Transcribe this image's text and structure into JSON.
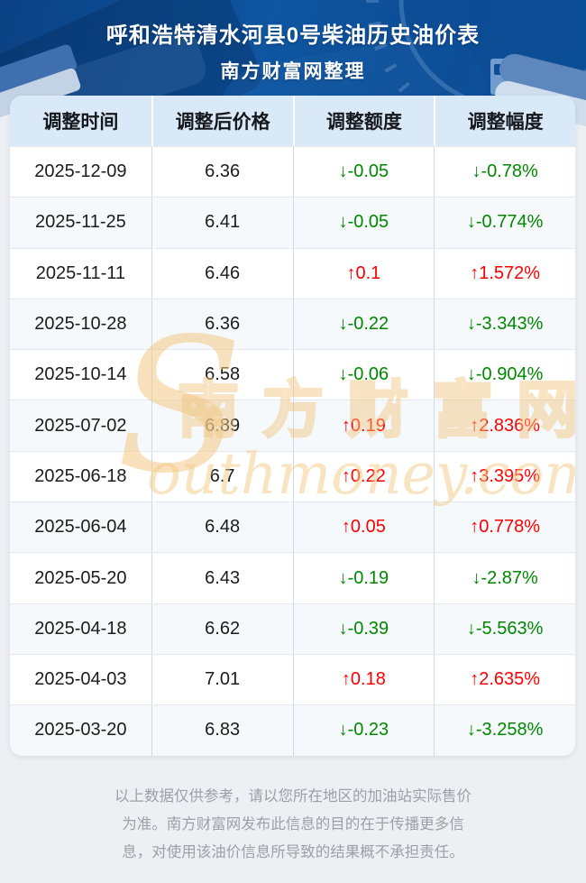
{
  "header": {
    "title": "呼和浩特清水河县0号柴油历史油价表",
    "subtitle": "南方财富网整理"
  },
  "table": {
    "columns": [
      "调整时间",
      "调整后价格",
      "调整额度",
      "调整幅度"
    ],
    "arrows": {
      "up": "↑",
      "down": "↓"
    },
    "rows": [
      {
        "date": "2025-12-09",
        "price": "6.36",
        "change": "-0.05",
        "pct": "-0.78%",
        "direction": "down"
      },
      {
        "date": "2025-11-25",
        "price": "6.41",
        "change": "-0.05",
        "pct": "-0.774%",
        "direction": "down"
      },
      {
        "date": "2025-11-11",
        "price": "6.46",
        "change": "0.1",
        "pct": "1.572%",
        "direction": "up"
      },
      {
        "date": "2025-10-28",
        "price": "6.36",
        "change": "-0.22",
        "pct": "-3.343%",
        "direction": "down"
      },
      {
        "date": "2025-10-14",
        "price": "6.58",
        "change": "-0.06",
        "pct": "-0.904%",
        "direction": "down"
      },
      {
        "date": "2025-07-02",
        "price": "6.89",
        "change": "0.19",
        "pct": "2.836%",
        "direction": "up"
      },
      {
        "date": "2025-06-18",
        "price": "6.7",
        "change": "0.22",
        "pct": "3.395%",
        "direction": "up"
      },
      {
        "date": "2025-06-04",
        "price": "6.48",
        "change": "0.05",
        "pct": "0.778%",
        "direction": "up"
      },
      {
        "date": "2025-05-20",
        "price": "6.43",
        "change": "-0.19",
        "pct": "-2.87%",
        "direction": "down"
      },
      {
        "date": "2025-04-18",
        "price": "6.62",
        "change": "-0.39",
        "pct": "-5.563%",
        "direction": "down"
      },
      {
        "date": "2025-04-03",
        "price": "7.01",
        "change": "0.18",
        "pct": "2.635%",
        "direction": "up"
      },
      {
        "date": "2025-03-20",
        "price": "6.83",
        "change": "-0.23",
        "pct": "-3.258%",
        "direction": "down"
      }
    ]
  },
  "chart_data": {
    "type": "table",
    "title": "呼和浩特清水河县0号柴油历史油价表",
    "columns": [
      "调整时间",
      "调整后价格",
      "调整额度",
      "调整幅度"
    ],
    "rows": [
      [
        "2025-12-09",
        "6.36",
        "↓-0.05",
        "↓-0.78%"
      ],
      [
        "2025-11-25",
        "6.41",
        "↓-0.05",
        "↓-0.774%"
      ],
      [
        "2025-11-11",
        "6.46",
        "↑0.1",
        "↑1.572%"
      ],
      [
        "2025-10-28",
        "6.36",
        "↓-0.22",
        "↓-3.343%"
      ],
      [
        "2025-10-14",
        "6.58",
        "↓-0.06",
        "↓-0.904%"
      ],
      [
        "2025-07-02",
        "6.89",
        "↑0.19",
        "↑2.836%"
      ],
      [
        "2025-06-18",
        "6.7",
        "↑0.22",
        "↑3.395%"
      ],
      [
        "2025-06-04",
        "6.48",
        "↑0.05",
        "↑0.778%"
      ],
      [
        "2025-05-20",
        "6.43",
        "↓-0.19",
        "↓-2.87%"
      ],
      [
        "2025-04-18",
        "6.62",
        "↓-0.39",
        "↓-5.563%"
      ],
      [
        "2025-04-03",
        "7.01",
        "↑0.18",
        "↑2.635%"
      ],
      [
        "2025-03-20",
        "6.83",
        "↓-0.23",
        "↓-3.258%"
      ]
    ]
  },
  "watermark": {
    "initial": "S",
    "cn": "南方财富网",
    "latin": "outhmoney.com"
  },
  "footer": {
    "text": "以上数据仅供参考，请以您所在地区的加油站实际售价\n为准。南方财富网发布此信息的目的在于传播更多信\n息，对使用该油价信息所导致的结果概不承担责任。"
  },
  "colors": {
    "up": "#fe0000",
    "down": "#008800",
    "banner_dark": "#0b4183",
    "banner_light": "#0f55a0",
    "header_bg": "#d9e9f8",
    "page_bg": "#edeff3",
    "watermark": "#f3c985"
  }
}
